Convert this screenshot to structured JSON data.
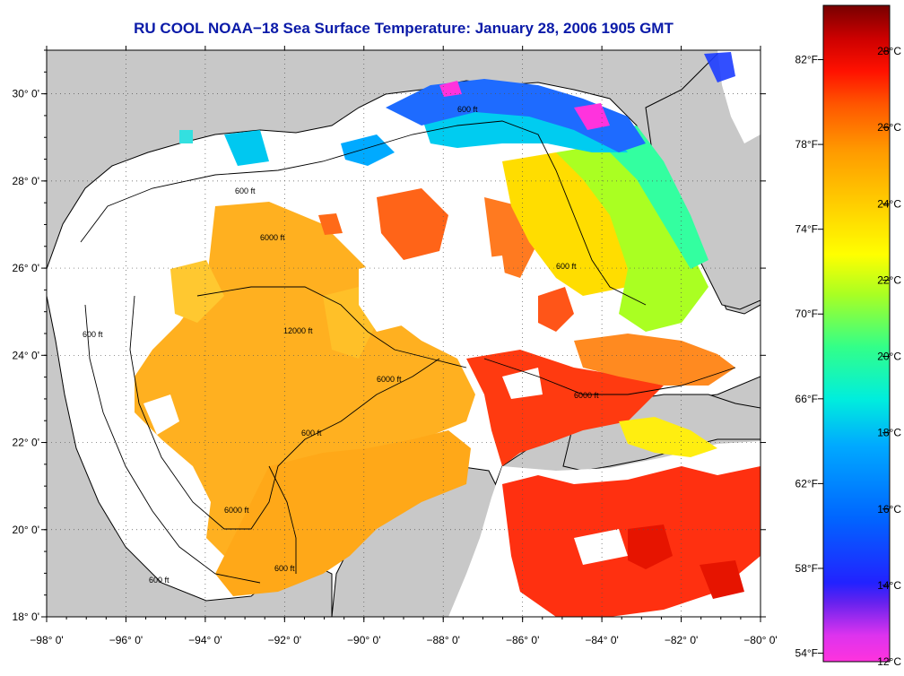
{
  "title": "RU COOL  NOAA−18  Sea Surface Temperature:  January 28, 2006 1905 GMT",
  "map": {
    "lon_range": [
      -98,
      -80
    ],
    "lat_range": [
      18,
      31
    ],
    "lon_ticks": [
      {
        "value": -98,
        "label": "−98° 0'"
      },
      {
        "value": -96,
        "label": "−96° 0'"
      },
      {
        "value": -94,
        "label": "−94° 0'"
      },
      {
        "value": -92,
        "label": "−92° 0'"
      },
      {
        "value": -90,
        "label": "−90° 0'"
      },
      {
        "value": -88,
        "label": "−88° 0'"
      },
      {
        "value": -86,
        "label": "−86° 0'"
      },
      {
        "value": -84,
        "label": "−84° 0'"
      },
      {
        "value": -82,
        "label": "−82° 0'"
      },
      {
        "value": -80,
        "label": "−80° 0'"
      }
    ],
    "lat_ticks": [
      {
        "value": 18,
        "label": "18° 0'"
      },
      {
        "value": 20,
        "label": "20° 0'"
      },
      {
        "value": 22,
        "label": "22° 0'"
      },
      {
        "value": 24,
        "label": "24° 0'"
      },
      {
        "value": 26,
        "label": "26° 0'"
      },
      {
        "value": 28,
        "label": "28° 0'"
      },
      {
        "value": 30,
        "label": "30° 0'"
      }
    ],
    "contour_labels": [
      "600 ft",
      "6000 ft",
      "12000 ft"
    ],
    "colors": {
      "land": "#c8c8c8",
      "cloud": "#ffffff",
      "coast": "#000000"
    }
  },
  "colorbar": {
    "celsius_range": [
      12,
      29.2
    ],
    "celsius_ticks": [
      {
        "value": 12,
        "label": "12°C"
      },
      {
        "value": 14,
        "label": "14°C"
      },
      {
        "value": 16,
        "label": "16°C"
      },
      {
        "value": 18,
        "label": "18°C"
      },
      {
        "value": 20,
        "label": "20°C"
      },
      {
        "value": 22,
        "label": "22°C"
      },
      {
        "value": 24,
        "label": "24°C"
      },
      {
        "value": 26,
        "label": "26°C"
      },
      {
        "value": 28,
        "label": "28°C"
      }
    ],
    "fahrenheit_ticks": [
      {
        "value": 54,
        "label": "54°F"
      },
      {
        "value": 58,
        "label": "58°F"
      },
      {
        "value": 62,
        "label": "62°F"
      },
      {
        "value": 66,
        "label": "66°F"
      },
      {
        "value": 70,
        "label": "70°F"
      },
      {
        "value": 74,
        "label": "74°F"
      },
      {
        "value": 78,
        "label": "78°F"
      },
      {
        "value": 82,
        "label": "82°F"
      }
    ],
    "colormap": [
      "#ff33dd",
      "#aa22ee",
      "#2222ff",
      "#0066ff",
      "#00aaff",
      "#00eedd",
      "#33ff88",
      "#aaff22",
      "#ffff00",
      "#ffcc00",
      "#ff9900",
      "#ff5500",
      "#ff1100",
      "#cc0000",
      "#770000"
    ]
  }
}
